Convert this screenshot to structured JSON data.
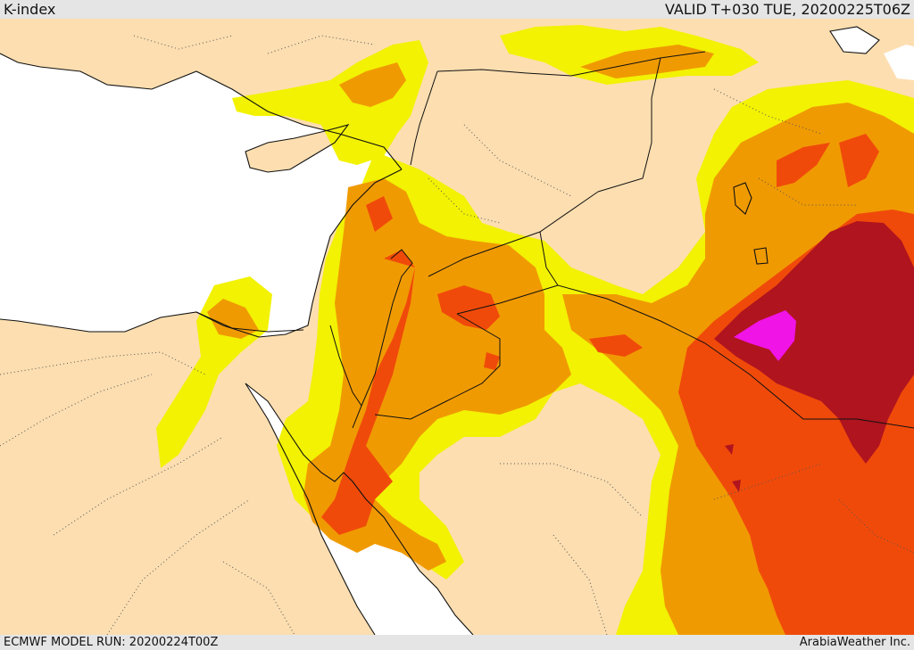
{
  "header": {
    "field_label": "K-index",
    "valid_time": "VALID T+030 TUE, 20200225T06Z"
  },
  "footer": {
    "model_run": "ECMWF MODEL RUN: 20200224T00Z",
    "brand": "ArabiaWeather Inc."
  },
  "colors": {
    "land": "#fcdeb0",
    "water": "#ffffff",
    "level_1": "#f2f202",
    "level_2": "#f09a02",
    "level_3": "#f04a0a",
    "level_4": "#b0141e",
    "level_5": "#f014e6"
  }
}
